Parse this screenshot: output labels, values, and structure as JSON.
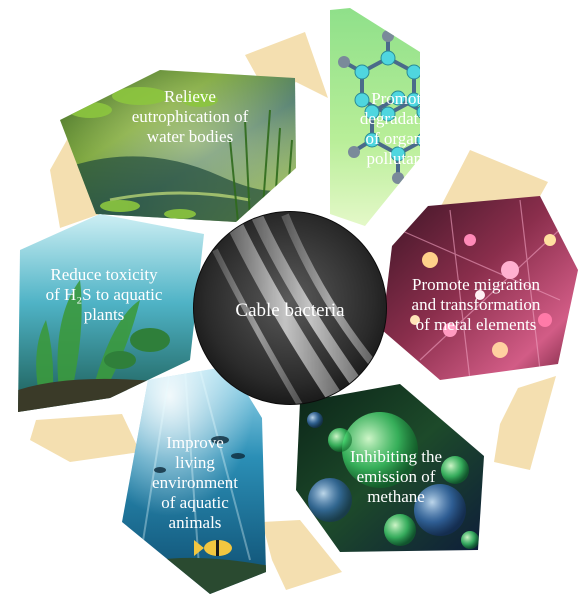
{
  "center": {
    "label": "Cable bacteria"
  },
  "benefits": [
    {
      "id": "eutrophication",
      "lines": [
        "Relieve",
        "eutrophication of",
        "water bodies"
      ],
      "theme": "wetland-scene"
    },
    {
      "id": "degradation",
      "lines": [
        "Promote",
        "degradation",
        "of organic",
        "pollutants"
      ],
      "theme": "molecule-structure"
    },
    {
      "id": "metal",
      "lines": [
        "Promote migration",
        "and transformation",
        "of metal elements"
      ],
      "theme": "metal-atoms"
    },
    {
      "id": "methane",
      "lines": [
        "Inhibiting the",
        "emission of",
        "methane"
      ],
      "theme": "microbial-bubbles"
    },
    {
      "id": "animals",
      "lines": [
        "Improve",
        "living",
        "environment",
        "of aquatic",
        "animals"
      ],
      "theme": "underwater-fish"
    },
    {
      "id": "h2s",
      "lines": [
        "Reduce toxicity",
        "of H₂S to aquatic",
        "plants"
      ],
      "theme": "aquatic-plants"
    }
  ],
  "colors": {
    "arrow": "#f4dfb0",
    "text": "#ffffff",
    "center_fill": "#141414"
  }
}
